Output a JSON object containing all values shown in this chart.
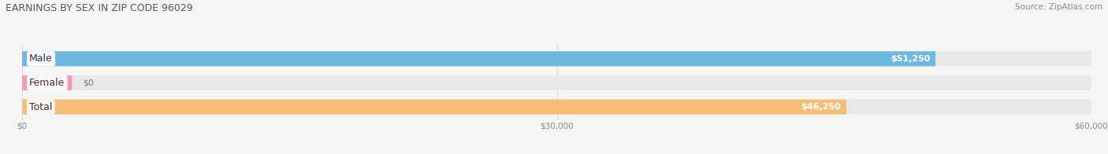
{
  "title": "EARNINGS BY SEX IN ZIP CODE 96029",
  "source": "Source: ZipAtlas.com",
  "categories": [
    "Male",
    "Female",
    "Total"
  ],
  "values": [
    51250,
    0,
    46250
  ],
  "bar_colors": [
    "#6eb8e0",
    "#f09cb8",
    "#f5bf78"
  ],
  "bar_bg_color": "#e8e8e8",
  "value_labels": [
    "$51,250",
    "$0",
    "$46,250"
  ],
  "xlim": [
    0,
    60000
  ],
  "xticks": [
    0,
    30000,
    60000
  ],
  "xtick_labels": [
    "$0",
    "$30,000",
    "$60,000"
  ],
  "bar_height": 0.62,
  "figsize": [
    14.06,
    1.96
  ],
  "dpi": 100,
  "bg_color": "#f5f5f5",
  "title_fontsize": 9,
  "label_fontsize": 9,
  "value_fontsize": 8,
  "source_fontsize": 7.5,
  "female_nub_value": 2800
}
